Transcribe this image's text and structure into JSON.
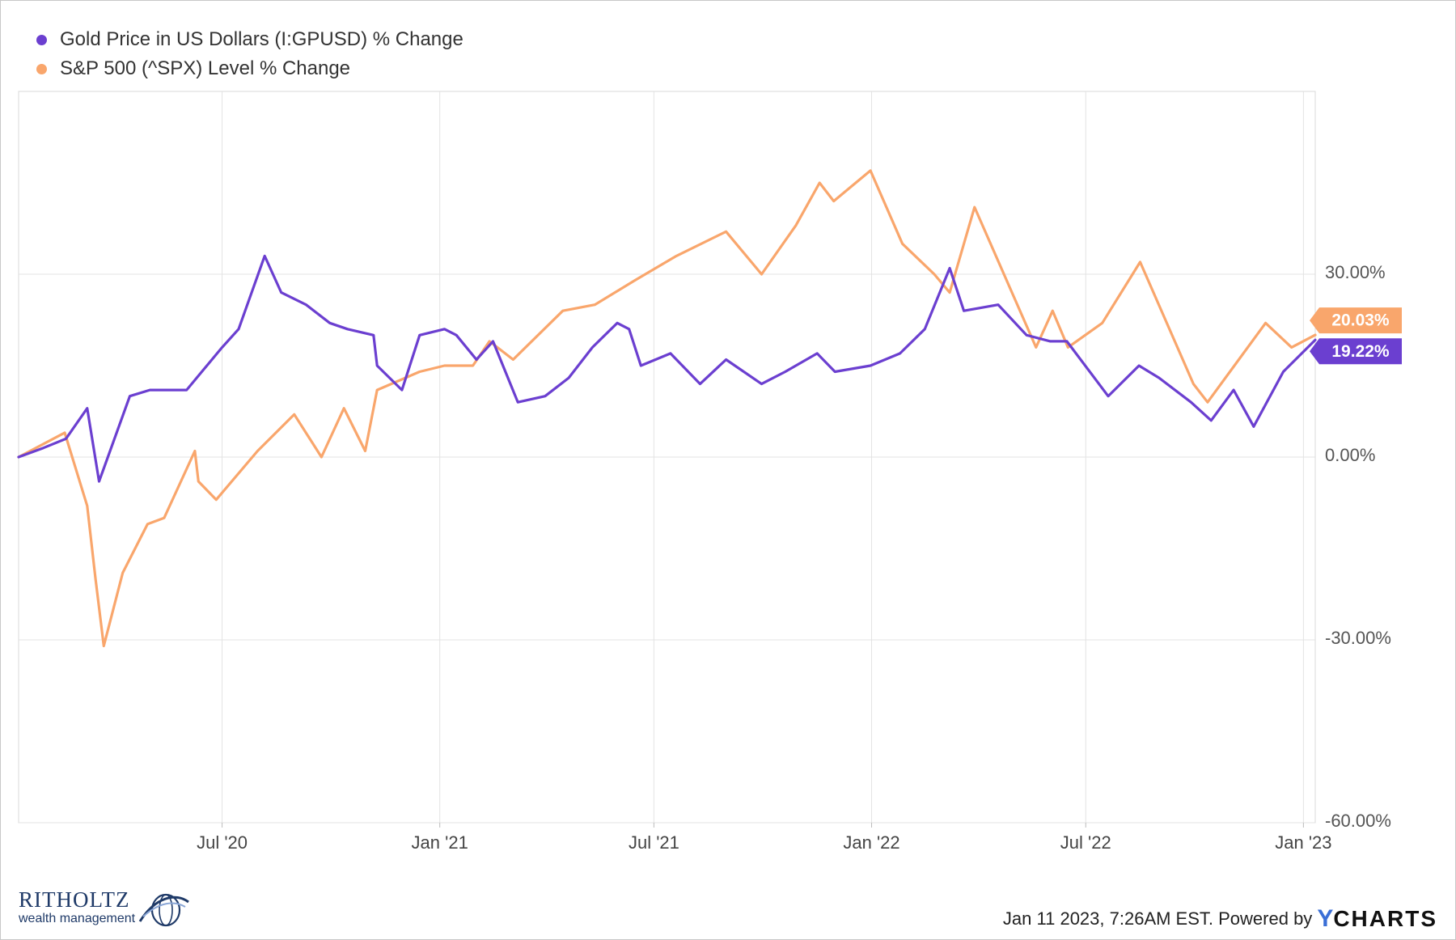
{
  "legend": {
    "gold_label": "Gold Price in US Dollars (I:GPUSD) % Change",
    "spx_label": "S&P 500 (^SPX) Level % Change"
  },
  "colors": {
    "gold": "#6b3fd0",
    "spx": "#f9a66c",
    "grid": "#e3e3e3"
  },
  "footer": {
    "timestamp": "Jan 11 2023, 7:26AM EST. Powered by",
    "brand_y": "Y",
    "brand_rest": "CHARTS"
  },
  "logo": {
    "name": "RITHOLTZ",
    "sub": "wealth management"
  },
  "chart_data": {
    "type": "line",
    "ylim": [
      -60,
      60
    ],
    "yticks": [
      30,
      0,
      -30,
      -60
    ],
    "ytick_labels": [
      "30.00%",
      "0.00%",
      "-30.00%",
      "-60.00%"
    ],
    "xticks": [
      "2020-07-01",
      "2021-01-01",
      "2021-07-01",
      "2022-01-01",
      "2022-07-01",
      "2023-01-01"
    ],
    "xtick_labels": [
      "Jul '20",
      "Jan '21",
      "Jul '21",
      "Jan '22",
      "Jul '22",
      "Jan '23"
    ],
    "x_range": [
      "2020-01-11",
      "2023-01-11"
    ],
    "grid": true,
    "legend_position": "top-left",
    "series": [
      {
        "name": "Gold Price in US Dollars (I:GPUSD) % Change",
        "end_label": "19.22%",
        "x": [
          "2020-01-11",
          "2020-02-01",
          "2020-02-20",
          "2020-03-09",
          "2020-03-19",
          "2020-04-14",
          "2020-05-01",
          "2020-06-01",
          "2020-07-01",
          "2020-07-15",
          "2020-08-06",
          "2020-08-20",
          "2020-09-10",
          "2020-09-30",
          "2020-10-15",
          "2020-11-06",
          "2020-11-09",
          "2020-11-30",
          "2020-12-15",
          "2021-01-05",
          "2021-01-15",
          "2021-02-01",
          "2021-02-15",
          "2021-03-08",
          "2021-03-31",
          "2021-04-20",
          "2021-05-10",
          "2021-05-31",
          "2021-06-10",
          "2021-06-20",
          "2021-07-15",
          "2021-08-09",
          "2021-08-31",
          "2021-09-30",
          "2021-10-20",
          "2021-11-16",
          "2021-12-01",
          "2021-12-31",
          "2022-01-25",
          "2022-02-15",
          "2022-03-08",
          "2022-03-20",
          "2022-04-18",
          "2022-05-12",
          "2022-06-01",
          "2022-06-15",
          "2022-07-20",
          "2022-08-15",
          "2022-09-01",
          "2022-09-28",
          "2022-10-15",
          "2022-11-03",
          "2022-11-20",
          "2022-12-15",
          "2023-01-11"
        ],
        "y": [
          0,
          1.5,
          3,
          8,
          -4,
          10,
          11,
          11,
          18,
          21,
          33,
          27,
          25,
          22,
          21,
          20,
          15,
          11,
          20,
          21,
          20,
          16,
          19,
          9,
          10,
          13,
          18,
          22,
          21,
          15,
          17,
          12,
          16,
          12,
          14,
          17,
          14,
          15,
          17,
          21,
          31,
          24,
          25,
          20,
          19,
          19,
          10,
          15,
          13,
          9,
          6,
          11,
          5,
          14,
          19.22
        ]
      },
      {
        "name": "S&P 500 (^SPX) Level % Change",
        "end_label": "20.03%",
        "x": [
          "2020-01-11",
          "2020-02-19",
          "2020-03-09",
          "2020-03-16",
          "2020-03-23",
          "2020-04-08",
          "2020-04-29",
          "2020-05-13",
          "2020-06-08",
          "2020-06-11",
          "2020-06-26",
          "2020-07-31",
          "2020-08-31",
          "2020-09-23",
          "2020-10-12",
          "2020-10-30",
          "2020-11-09",
          "2020-12-15",
          "2021-01-05",
          "2021-01-29",
          "2021-02-12",
          "2021-03-04",
          "2021-04-15",
          "2021-05-12",
          "2021-06-15",
          "2021-07-20",
          "2021-08-31",
          "2021-09-30",
          "2021-10-29",
          "2021-11-18",
          "2021-11-30",
          "2021-12-31",
          "2022-01-27",
          "2022-02-23",
          "2022-03-08",
          "2022-03-29",
          "2022-05-20",
          "2022-06-03",
          "2022-06-16",
          "2022-07-15",
          "2022-08-16",
          "2022-09-30",
          "2022-10-12",
          "2022-11-30",
          "2022-12-22",
          "2023-01-11"
        ],
        "y": [
          0,
          4,
          -8,
          -20,
          -31,
          -19,
          -11,
          -10,
          1,
          -4,
          -7,
          1,
          7,
          0,
          8,
          1,
          11,
          14,
          15,
          15,
          19,
          16,
          24,
          25,
          29,
          33,
          37,
          30,
          38,
          45,
          42,
          47,
          35,
          30,
          27,
          41,
          18,
          24,
          18,
          22,
          32,
          12,
          9,
          22,
          18,
          20.03
        ]
      }
    ]
  }
}
